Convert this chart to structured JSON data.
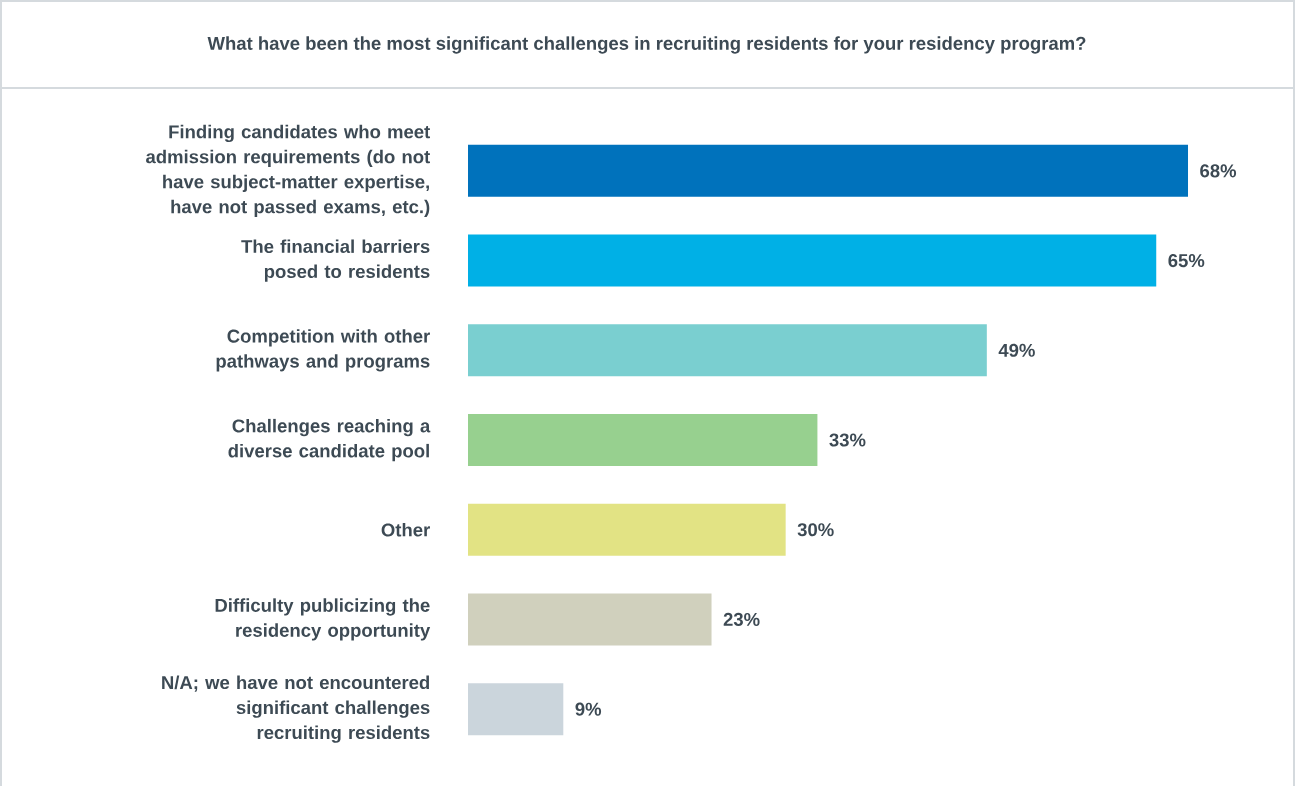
{
  "chart_data": {
    "type": "bar",
    "orientation": "horizontal",
    "title": "What have been the most significant challenges in recruiting residents for your residency program?",
    "categories": [
      "Finding candidates who meet admission requirements (do not have subject-matter expertise, have not passed exams, etc.)",
      "The financial barriers posed to residents",
      "Competition with other pathways and programs",
      "Challenges reaching a diverse candidate pool",
      "Other",
      "Difficulty publicizing the residency opportunity",
      "N/A; we have not encountered significant challenges recruiting residents"
    ],
    "values": [
      68,
      65,
      49,
      33,
      30,
      23,
      9
    ],
    "value_labels": [
      "68%",
      "65%",
      "49%",
      "33%",
      "30%",
      "23%",
      "9%"
    ],
    "colors": [
      "#0072bc",
      "#00b0e6",
      "#7acfd0",
      "#97d08f",
      "#e2e384",
      "#d0d0bd",
      "#cbd5dc"
    ],
    "tick_labels": "y"
  }
}
